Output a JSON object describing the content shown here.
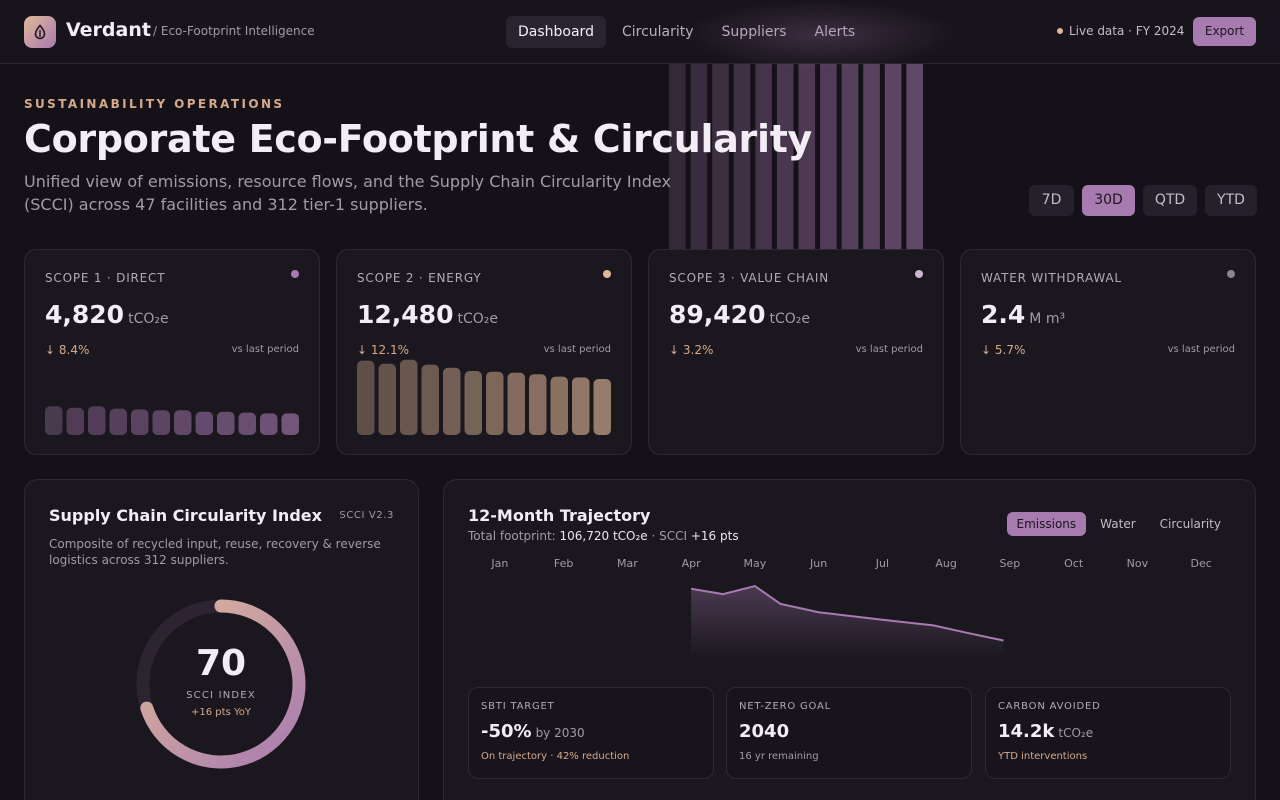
{
  "brand": {
    "name": "Verdant",
    "subtitle": "/ Eco-Footprint Intelligence",
    "logo_icon": "leaf-drop-icon"
  },
  "nav": {
    "items": [
      {
        "label": "Dashboard",
        "active": true
      },
      {
        "label": "Circularity",
        "active": false
      },
      {
        "label": "Suppliers",
        "active": false
      },
      {
        "label": "Alerts",
        "active": false
      }
    ],
    "live_text": "Live data · FY 2024",
    "export_label": "Export"
  },
  "header": {
    "eyebrow": "SUSTAINABILITY OPERATIONS",
    "title": "Corporate Eco-Footprint & Circularity",
    "description": "Unified view of emissions, resource flows, and the Supply Chain Circularity Index (SCCI) across 47 facilities and 312 tier-1 suppliers.",
    "ranges": [
      {
        "label": "7D",
        "active": false
      },
      {
        "label": "30D",
        "active": true
      },
      {
        "label": "QTD",
        "active": false
      },
      {
        "label": "YTD",
        "active": false
      }
    ]
  },
  "kpis": [
    {
      "label": "SCOPE 1 · DIRECT",
      "value": "4,820",
      "unit": "tCO₂e",
      "delta": "↓ 8.4%",
      "vs": "vs last period",
      "color": "#a77ab0",
      "bars": [
        0.36,
        0.34,
        0.36,
        0.33,
        0.32,
        0.31,
        0.31,
        0.29,
        0.29,
        0.28,
        0.27,
        0.27
      ]
    },
    {
      "label": "SCOPE 2 · ENERGY",
      "value": "12,480",
      "unit": "tCO₂e",
      "delta": "↓ 12.1%",
      "vs": "vs last period",
      "color": "#e0b898",
      "bars": [
        0.93,
        0.89,
        0.94,
        0.88,
        0.84,
        0.8,
        0.79,
        0.78,
        0.76,
        0.73,
        0.72,
        0.7
      ]
    },
    {
      "label": "SCOPE 3 · VALUE CHAIN",
      "value": "89,420",
      "unit": "tCO₂e",
      "delta": "↓ 3.2%",
      "vs": "vs last period",
      "color": "#cbb5cf",
      "bars": []
    },
    {
      "label": "WATER WITHDRAWAL",
      "value": "2.4",
      "unit": "M m³",
      "delta": "↓ 5.7%",
      "vs": "vs last period",
      "color": "#8c8494",
      "bars": []
    }
  ],
  "scci": {
    "title": "Supply Chain Circularity Index",
    "version": "SCCI V2.3",
    "description": "Composite of recycled input, reuse, recovery & reverse logistics across 312 suppliers.",
    "value": "70",
    "fraction": 0.7,
    "label": "SCCI INDEX",
    "delta": "+16 pts YoY"
  },
  "trajectory": {
    "title": "12-Month Trajectory",
    "subtitle_prefix": "Total footprint: ",
    "subtitle_total": "106,720 tCO₂e",
    "subtitle_mid": " · SCCI ",
    "subtitle_delta": "+16 pts",
    "tabs": [
      {
        "label": "Emissions",
        "active": true
      },
      {
        "label": "Water",
        "active": false
      },
      {
        "label": "Circularity",
        "active": false
      }
    ]
  },
  "chart_data": {
    "type": "area",
    "categories": [
      "Jan",
      "Feb",
      "Mar",
      "Apr",
      "May",
      "Jun",
      "Jul",
      "Aug",
      "Sep",
      "Oct",
      "Nov",
      "Dec"
    ],
    "x": [
      "Apr",
      "Apr-May",
      "May",
      "May-Jun",
      "Jun",
      "Jul",
      "Aug",
      "Aug-Sep",
      "Sep"
    ],
    "x_positions": [
      3,
      3.5,
      4,
      4.4,
      5,
      5.9,
      6.8,
      7.3,
      7.9
    ],
    "values": [
      1.0,
      0.84,
      1.08,
      0.55,
      0.3,
      0.1,
      -0.09,
      -0.3,
      -0.54
    ],
    "ylim": [
      -1,
      1.2
    ],
    "xlabel": "",
    "ylabel": "",
    "title": "",
    "grid": false,
    "color": "#a77ab0"
  },
  "targets": [
    {
      "label": "SBTI TARGET",
      "value": "-50%",
      "unit": "by 2030",
      "note": "On trajectory · 42% reduction",
      "accent": true
    },
    {
      "label": "NET-ZERO GOAL",
      "value": "2040",
      "unit": "",
      "note": "16 yr remaining",
      "accent": false
    },
    {
      "label": "CARBON AVOIDED",
      "value": "14.2k",
      "unit": "tCO₂e",
      "note": "YTD interventions",
      "accent": true
    }
  ]
}
